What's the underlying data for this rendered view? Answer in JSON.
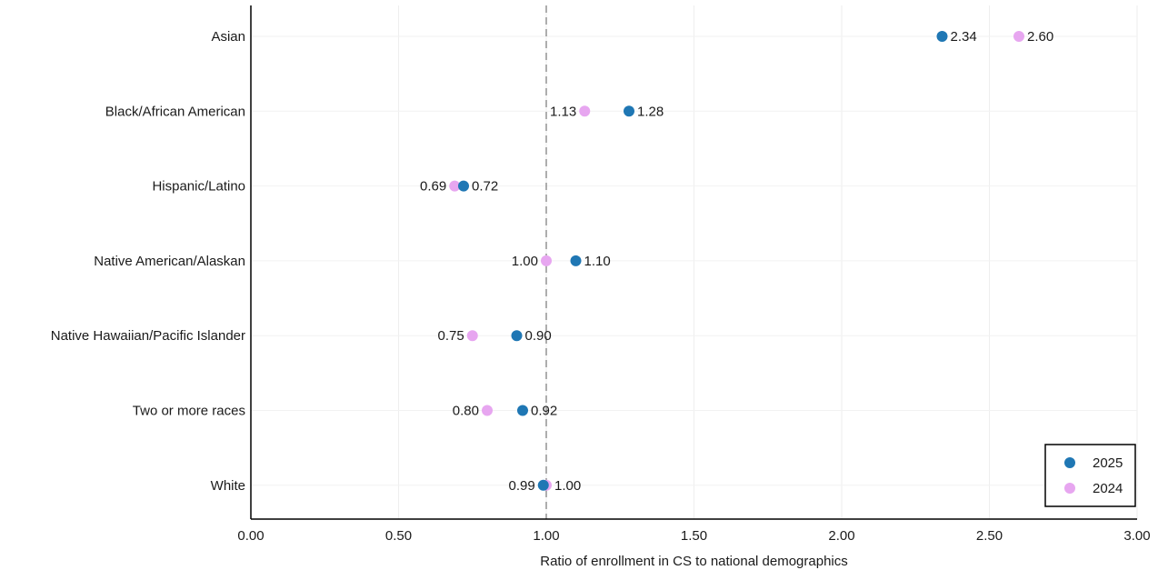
{
  "chart_data": {
    "type": "scatter",
    "xlabel": "Ratio of enrollment in CS to national demographics",
    "ylabel": "",
    "xlim": [
      0,
      3
    ],
    "xticks": [
      "0.00",
      "0.50",
      "1.00",
      "1.50",
      "2.00",
      "2.50",
      "3.00"
    ],
    "reference_line_x": 1.0,
    "grid": true,
    "legend_position": "bottom-right",
    "categories": [
      "Asian",
      "Black/African American",
      "Hispanic/Latino",
      "Native American/Alaskan",
      "Native Hawaiian/Pacific Islander",
      "Two or more races",
      "White"
    ],
    "series": [
      {
        "name": "2025",
        "color": "#1f77b4",
        "values": [
          2.34,
          1.28,
          0.72,
          1.1,
          0.9,
          0.92,
          0.99
        ],
        "labels": [
          "2.34",
          "1.28",
          "0.72",
          "1.10",
          "0.90",
          "0.92",
          "0.99"
        ]
      },
      {
        "name": "2024",
        "color": "#e7a6f0",
        "values": [
          2.6,
          1.13,
          0.69,
          1.0,
          0.75,
          0.8,
          1.0
        ],
        "labels": [
          "2.60",
          "1.13",
          "0.69",
          "1.00",
          "0.75",
          "0.80",
          "1.00"
        ]
      }
    ]
  }
}
